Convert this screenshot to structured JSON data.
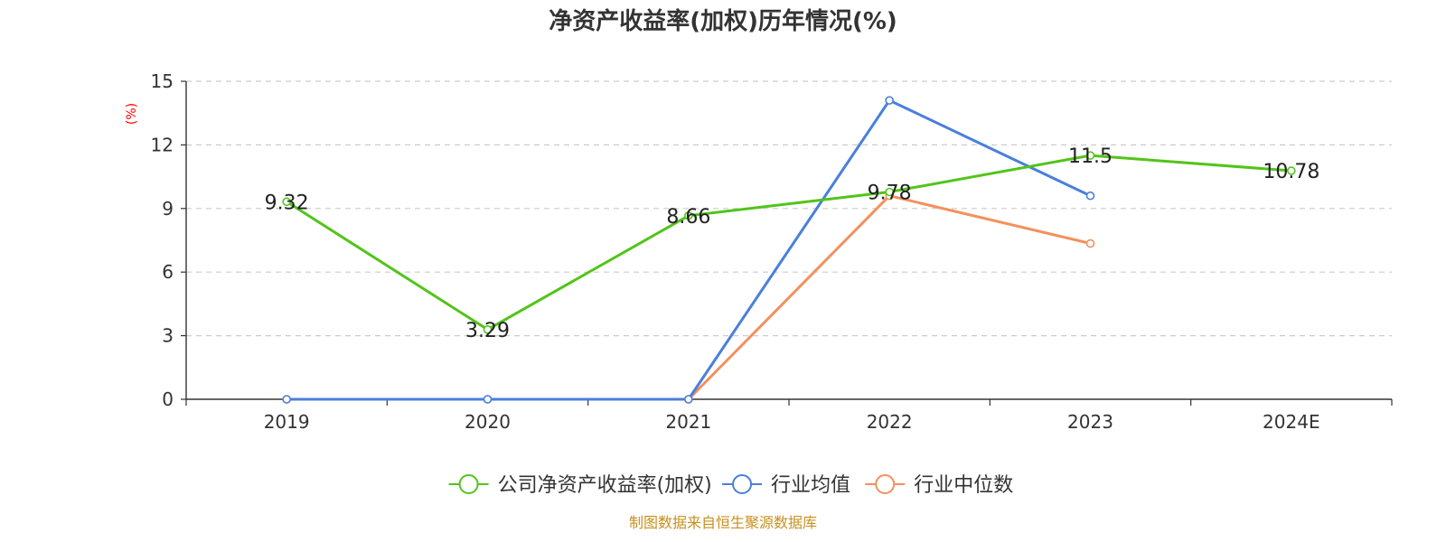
{
  "chart_data": {
    "type": "line",
    "title": "净资产收益率(加权)历年情况(%)",
    "ylabel": "(%)",
    "categories": [
      "2019",
      "2020",
      "2021",
      "2022",
      "2023",
      "2024E"
    ],
    "ylim": [
      0,
      15
    ],
    "yticks": [
      0,
      3,
      6,
      9,
      12,
      15
    ],
    "grid": true,
    "legend_position": "bottom",
    "series": [
      {
        "name": "公司净资产收益率(加权)",
        "color": "#52c41a",
        "values": [
          9.32,
          3.29,
          8.66,
          9.78,
          11.5,
          10.78
        ],
        "labels": [
          "9.32",
          "3.29",
          "8.66",
          "9.78",
          "11.5",
          "10.78"
        ]
      },
      {
        "name": "行业均值",
        "color": "#4a7fdc",
        "values": [
          0,
          0,
          0,
          14.1,
          9.6,
          null
        ],
        "labels": []
      },
      {
        "name": "行业中位数",
        "color": "#f4905c",
        "values": [
          0,
          0,
          0,
          9.6,
          7.35,
          null
        ],
        "labels": []
      }
    ]
  },
  "footer": {
    "source": "制图数据来自恒生聚源数据库"
  }
}
